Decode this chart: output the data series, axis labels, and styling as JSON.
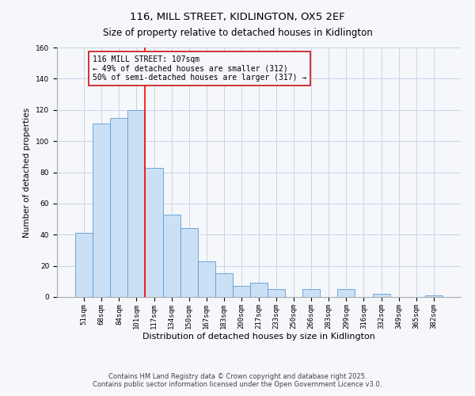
{
  "title": "116, MILL STREET, KIDLINGTON, OX5 2EF",
  "subtitle": "Size of property relative to detached houses in Kidlington",
  "xlabel": "Distribution of detached houses by size in Kidlington",
  "ylabel": "Number of detached properties",
  "categories": [
    "51sqm",
    "68sqm",
    "84sqm",
    "101sqm",
    "117sqm",
    "134sqm",
    "150sqm",
    "167sqm",
    "183sqm",
    "200sqm",
    "217sqm",
    "233sqm",
    "250sqm",
    "266sqm",
    "283sqm",
    "299sqm",
    "316sqm",
    "332sqm",
    "349sqm",
    "365sqm",
    "382sqm"
  ],
  "values": [
    41,
    111,
    115,
    120,
    83,
    53,
    44,
    23,
    15,
    7,
    9,
    5,
    0,
    5,
    0,
    5,
    0,
    2,
    0,
    0,
    1
  ],
  "bar_color": "#cce0f5",
  "bar_edge_color": "#5b9bd5",
  "red_line_x": 3.5,
  "annotation_title": "116 MILL STREET: 107sqm",
  "annotation_line1": "← 49% of detached houses are smaller (312)",
  "annotation_line2": "50% of semi-detached houses are larger (317) →",
  "ylim": [
    0,
    160
  ],
  "yticks": [
    0,
    20,
    40,
    60,
    80,
    100,
    120,
    140,
    160
  ],
  "footer1": "Contains HM Land Registry data © Crown copyright and database right 2025.",
  "footer2": "Contains public sector information licensed under the Open Government Licence v3.0.",
  "bg_color": "#f5f7fb",
  "grid_color": "#c8d4e8",
  "title_fontsize": 9.5,
  "subtitle_fontsize": 8.5,
  "xlabel_fontsize": 8,
  "ylabel_fontsize": 7.5,
  "tick_fontsize": 6.5,
  "ann_fontsize": 7,
  "footer_fontsize": 6
}
